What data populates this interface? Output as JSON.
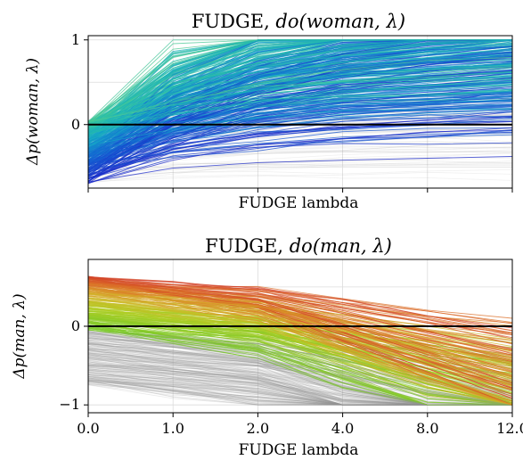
{
  "chart_data": [
    {
      "type": "line",
      "title_prefix": "FUDGE, ",
      "title_math": "do(woman, λ)",
      "xlabel": "FUDGE lambda",
      "ylabel": "Δp(woman, λ)",
      "categories": [
        "0.0",
        "1.0",
        "2.0",
        "4.0",
        "8.0",
        "12.0"
      ],
      "xtick_labels_visible": false,
      "yticks": [
        "0",
        "1"
      ],
      "ylim": [
        -0.75,
        1.05
      ],
      "reference_line_y": 0,
      "grid": true,
      "colormap": "blue (negative start) to green-cyan (near zero start); gray for flat/negative lines",
      "series_summary": {
        "description": "Hundreds of per-example trajectories of Δp versus FUDGE lambda",
        "start_range": [
          -0.7,
          0.05
        ],
        "end_range": [
          -0.2,
          1.0
        ]
      }
    },
    {
      "type": "line",
      "title_prefix": "FUDGE, ",
      "title_math": "do(man, λ)",
      "xlabel": "FUDGE lambda",
      "ylabel": "Δp(man, λ)",
      "categories": [
        "0.0",
        "1.0",
        "2.0",
        "4.0",
        "8.0",
        "12.0"
      ],
      "xtick_labels_visible": true,
      "yticks": [
        "−1",
        "0"
      ],
      "ylim": [
        -1.1,
        0.85
      ],
      "reference_line_y": 0,
      "grid": true,
      "colormap": "green-yellow to orange-red for higher starting values; gray for lower starting values",
      "series_summary": {
        "description": "Hundreds of per-example trajectories of Δp versus FUDGE lambda",
        "start_range": [
          -0.75,
          0.65
        ],
        "end_range": [
          -0.95,
          0.25
        ]
      }
    }
  ]
}
